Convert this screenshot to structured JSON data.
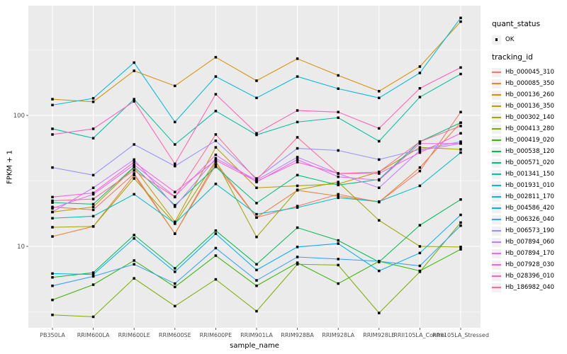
{
  "chart_data": {
    "type": "line",
    "title": "",
    "xlabel": "sample_name",
    "ylabel": "FPKM + 1",
    "y_scale": "log10",
    "y_tick_labels": [
      "100",
      "10"
    ],
    "y_tick_values": [
      100,
      10
    ],
    "y_minor_values": [
      3.162,
      31.62,
      316.2
    ],
    "ylim": [
      2.4,
      690
    ],
    "grid": "on",
    "legend_position": "right",
    "panel_bg": "#EBEBEB",
    "gridline_color": "#FFFFFF",
    "marker_color": "#000000",
    "axis_text_color": "#4D4D4D",
    "categories": [
      "PB350LA",
      "RRIM600LA",
      "RRIM600LE",
      "RRIM600SE",
      "RRIM600PE",
      "RRIM901LA",
      "RRIM928BA",
      "RRIM928LA",
      "RRIM928LE",
      "RRII105LA_Control",
      "RRII105LA_Stressed"
    ],
    "series": [
      {
        "name": "Hb_000045_310",
        "color": "#F8766D",
        "values": [
          20,
          19,
          36,
          12.5,
          44,
          16.6,
          20.3,
          25,
          21.8,
          37.6,
          106
        ]
      },
      {
        "name": "Hb_000085_350",
        "color": "#EA8331",
        "values": [
          11.9,
          14.2,
          35,
          12.5,
          42,
          16.6,
          26.8,
          24.2,
          21.8,
          40,
          88
        ]
      },
      {
        "name": "Hb_000136_260",
        "color": "#D89000",
        "values": [
          133,
          127,
          219,
          168,
          278,
          184,
          271,
          202,
          153,
          236,
          520
        ]
      },
      {
        "name": "Hb_000136_350",
        "color": "#C09B00",
        "values": [
          18.3,
          20,
          40,
          15.4,
          57,
          28,
          29,
          30,
          37,
          57,
          55
        ]
      },
      {
        "name": "Hb_000302_140",
        "color": "#A3A500",
        "values": [
          14,
          14.2,
          33,
          14.9,
          45,
          11.8,
          27,
          31,
          15.8,
          10,
          9.9
        ]
      },
      {
        "name": "Hb_000413_280",
        "color": "#7CAE00",
        "values": [
          3.0,
          2.9,
          5.7,
          3.5,
          5.6,
          3.2,
          7.3,
          7.2,
          3.1,
          6.4,
          15.2
        ]
      },
      {
        "name": "Hb_000419_020",
        "color": "#39B600",
        "values": [
          3.9,
          5.1,
          7.8,
          4.9,
          8.5,
          5.0,
          7.5,
          5.2,
          7.7,
          6.5,
          9.5
        ]
      },
      {
        "name": "Hb_000538_120",
        "color": "#00BB4E",
        "values": [
          5.8,
          6.3,
          12.2,
          6.8,
          13.2,
          7.3,
          13.9,
          11.1,
          7.6,
          14.5,
          22.8
        ]
      },
      {
        "name": "Hb_000571_020",
        "color": "#00BF7D",
        "values": [
          21.6,
          21,
          40.5,
          20.6,
          40.5,
          21.4,
          35,
          29.4,
          32.4,
          63,
          88
        ]
      },
      {
        "name": "Hb_001341_150",
        "color": "#00C1A3",
        "values": [
          79,
          67,
          133,
          60,
          108,
          71,
          89,
          96,
          63.5,
          138,
          207
        ]
      },
      {
        "name": "Hb_001931_010",
        "color": "#00BFC4",
        "values": [
          16.4,
          17,
          25,
          15,
          30,
          17.6,
          19.8,
          23.5,
          22,
          29,
          52
        ]
      },
      {
        "name": "Hb_002811_170",
        "color": "#00BAE0",
        "values": [
          120,
          135,
          253,
          89,
          198,
          136,
          198,
          160,
          136,
          211,
          555
        ]
      },
      {
        "name": "Hb_004586_420",
        "color": "#00B0F6",
        "values": [
          6.2,
          6.1,
          11.5,
          6.4,
          12.5,
          6.6,
          9.9,
          10.5,
          6.5,
          8.9,
          17.4
        ]
      },
      {
        "name": "Hb_006326_040",
        "color": "#35A2FF",
        "values": [
          5.0,
          5.9,
          7.3,
          5.2,
          9.7,
          5.5,
          8.3,
          8.0,
          7.7,
          7.1,
          14.4
        ]
      },
      {
        "name": "Hb_006573_190",
        "color": "#9590FF",
        "values": [
          40,
          35,
          60,
          41,
          64,
          33,
          56,
          54,
          46,
          55,
          63
        ]
      },
      {
        "name": "Hb_007894_060",
        "color": "#C77CFF",
        "values": [
          18.3,
          28,
          46,
          20.1,
          47,
          32,
          48,
          36,
          28,
          54,
          61
        ]
      },
      {
        "name": "Hb_007894_170",
        "color": "#E76BF3",
        "values": [
          19.5,
          25,
          42,
          24,
          50,
          31,
          46,
          34,
          32,
          61,
          61
        ]
      },
      {
        "name": "Hb_007928_030",
        "color": "#FA62DB",
        "values": [
          23.8,
          25.6,
          44,
          26,
          45.5,
          31.3,
          44,
          36,
          36,
          52,
          73
        ]
      },
      {
        "name": "Hb_028396_010",
        "color": "#FF62BC",
        "values": [
          71.5,
          79,
          128,
          42.7,
          145,
          73,
          109,
          106,
          79.6,
          161,
          232
        ]
      },
      {
        "name": "Hb_186982_040",
        "color": "#FF6A98",
        "values": [
          22.3,
          23,
          38,
          23.8,
          71.5,
          32.2,
          68,
          36,
          37,
          63,
          83
        ]
      }
    ]
  },
  "legend": {
    "quant_status_title": "quant_status",
    "quant_status_items": [
      "OK"
    ],
    "tracking_title": "tracking_id"
  }
}
